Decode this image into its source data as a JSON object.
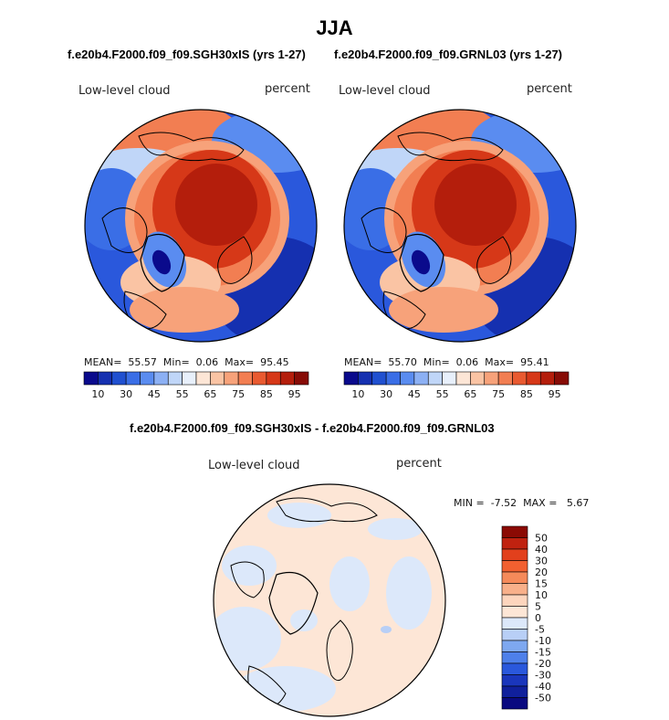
{
  "figure": {
    "title": "JJA",
    "variable": "Low-level cloud",
    "units": "percent"
  },
  "panels": [
    {
      "case": "f.e20b4.F2000.f09_f09.SGH30xIS (yrs 1-27)",
      "variable": "Low-level cloud",
      "units": "percent",
      "mean_label": "MEAN=",
      "mean": "55.57",
      "min_label": "Min=",
      "min": "0.06",
      "max_label": "Max=",
      "max": "95.45"
    },
    {
      "case": "f.e20b4.F2000.f09_f09.GRNL03 (yrs 1-27)",
      "variable": "Low-level cloud",
      "units": "percent",
      "mean_label": "MEAN=",
      "mean": "55.70",
      "min_label": "Min=",
      "min": "0.06",
      "max_label": "Max=",
      "max": "95.41"
    }
  ],
  "difference": {
    "title": "f.e20b4.F2000.f09_f09.SGH30xIS - f.e20b4.F2000.f09_f09.GRNL03",
    "variable": "Low-level cloud",
    "units": "percent",
    "min_label": "MIN =",
    "min": "-7.52",
    "max_label": "MAX =",
    "max": "5.67"
  },
  "colorbar_main": {
    "labels": [
      "10",
      "30",
      "45",
      "55",
      "65",
      "75",
      "85",
      "95"
    ],
    "colors": [
      "#0a0a8c",
      "#1530b0",
      "#2050d0",
      "#3a6ee6",
      "#5a8cf0",
      "#8cb0f4",
      "#c0d6f8",
      "#e8f0fb",
      "#fde6d6",
      "#fac4a4",
      "#f7a27a",
      "#f27e52",
      "#e95a30",
      "#d63818",
      "#b41e0c",
      "#870c06"
    ]
  },
  "colorbar_diff": {
    "labels": [
      "50",
      "40",
      "30",
      "20",
      "15",
      "10",
      "5",
      "0",
      "-5",
      "-10",
      "-15",
      "-20",
      "-30",
      "-40",
      "-50"
    ],
    "colors": [
      "#8b0a04",
      "#c02210",
      "#e2401c",
      "#f26030",
      "#f58a5a",
      "#f8b08a",
      "#fdd5bd",
      "#fde6d6",
      "#dce8fa",
      "#b8cff6",
      "#7ea8f0",
      "#4e80ea",
      "#2a58dc",
      "#1a36bc",
      "#10209c",
      "#0a0a80"
    ]
  }
}
